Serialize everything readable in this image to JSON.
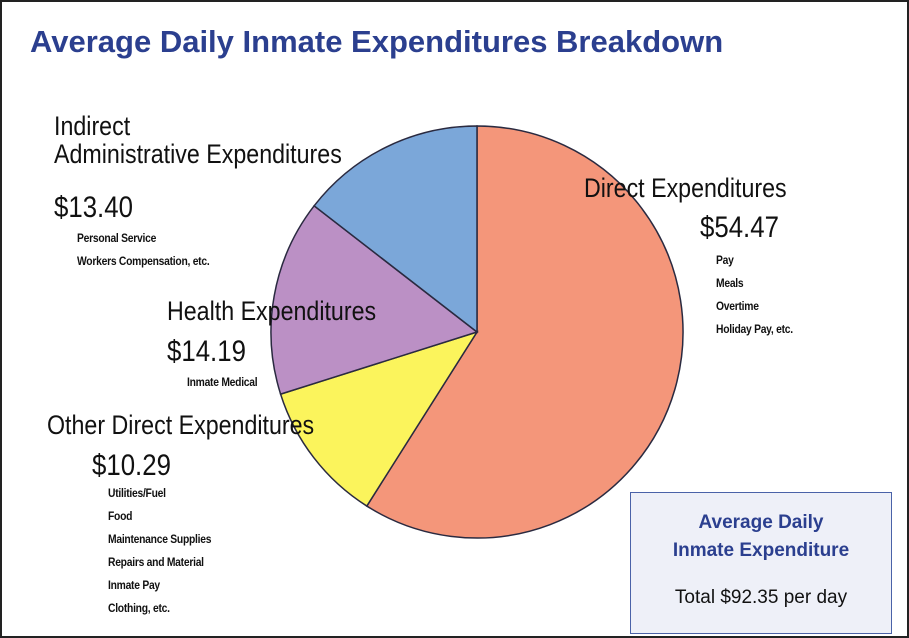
{
  "chart_data": {
    "type": "pie",
    "title": "Average Daily Inmate Expenditures Breakdown",
    "categories": [
      "Direct Expenditures",
      "Other Direct Expenditures",
      "Health Expenditures",
      "Indirect\nAdministrative Expenditures"
    ],
    "values": [
      54.47,
      10.29,
      14.19,
      13.4
    ],
    "value_labels": [
      "$54.47",
      "$10.29",
      "$14.19",
      "$13.40"
    ],
    "colors": [
      "#f4967a",
      "#fbf45c",
      "#bb90c5",
      "#7ba7d9"
    ],
    "details": [
      [
        "Pay",
        "Meals",
        "Overtime",
        "Holiday Pay, etc."
      ],
      [
        "Utilities/Fuel",
        "Food",
        "Maintenance Supplies",
        "Repairs and Material",
        "Inmate Pay",
        "Clothing, etc."
      ],
      [
        "Inmate Medical"
      ],
      [
        "Personal Service",
        "Workers Compensation, etc."
      ]
    ],
    "summary_box": {
      "heading": "Average Daily\nInmate Expenditure",
      "total": "Total $92.35 per day"
    }
  }
}
